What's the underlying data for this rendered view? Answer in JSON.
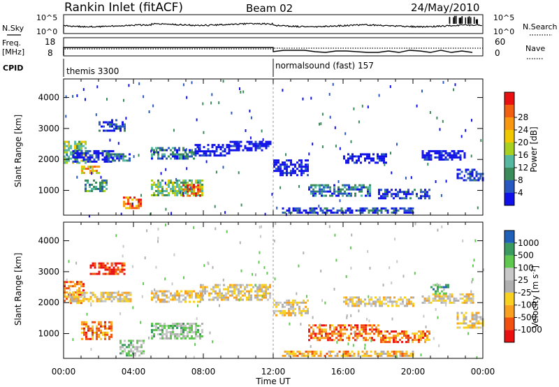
{
  "header": {
    "title": "Rankin Inlet (fitACF)",
    "beam": "Beam 02",
    "date": "24/May/2010"
  },
  "left_labels": {
    "nsky": "N.Sky",
    "freq": "Freq.",
    "mhz": "[MHz]",
    "cpid": "CPID"
  },
  "right_labels": {
    "nsearch": "N.Search",
    "nave": "Nave"
  },
  "ticks": {
    "sky_top": "10^5",
    "sky_bot": "10^0",
    "search_top": "10^5",
    "search_bot": "10^0",
    "freq_top": "18",
    "freq_bot": "8",
    "nave_top": "60",
    "nave_bot": "0"
  },
  "cpid": {
    "first": "themis 3300",
    "second": "normalsound (fast) 157"
  },
  "colors": {
    "power": [
      "#1010e8",
      "#2858c0",
      "#3a8a5a",
      "#56b8a0",
      "#a8d020",
      "#f0c800",
      "#f89810",
      "#f06010",
      "#e81010"
    ],
    "velocity": [
      "#e81010",
      "#f05010",
      "#f8a020",
      "#f8d020",
      "#b0b0b0",
      "#c8c8c8",
      "#60c850",
      "#3a9a60",
      "#2060b8",
      "#1010e8"
    ],
    "ground_scatter": "#bebebe"
  },
  "chart_data": [
    {
      "type": "heatmap",
      "name": "power",
      "ylabel": "Slant Range [km]",
      "yticks": [
        "1000",
        "2000",
        "3000",
        "4000"
      ],
      "ylim": [
        200,
        4600
      ],
      "xlim": [
        0,
        24
      ],
      "colorbar_label": "Power [dB]",
      "colorbar_ticks": [
        "4",
        "8",
        "12",
        "16",
        "20",
        "24",
        "28"
      ],
      "regions": [
        {
          "x": [
            0.0,
            1.3
          ],
          "y": [
            1900,
            2600
          ],
          "level": 4
        },
        {
          "x": [
            0.5,
            2.8
          ],
          "y": [
            1950,
            2300
          ],
          "level": 1
        },
        {
          "x": [
            1.0,
            2.0
          ],
          "y": [
            1550,
            1800
          ],
          "level": 6
        },
        {
          "x": [
            1.2,
            2.5
          ],
          "y": [
            1000,
            1350
          ],
          "level": 3
        },
        {
          "x": [
            2.0,
            3.5
          ],
          "y": [
            2900,
            3300
          ],
          "level": 1
        },
        {
          "x": [
            2.4,
            3.8
          ],
          "y": [
            1950,
            2200
          ],
          "level": 2
        },
        {
          "x": [
            3.4,
            4.4
          ],
          "y": [
            450,
            800
          ],
          "level": 7
        },
        {
          "x": [
            5.0,
            7.5
          ],
          "y": [
            2000,
            2400
          ],
          "level": 2
        },
        {
          "x": [
            5.0,
            8.0
          ],
          "y": [
            850,
            1350
          ],
          "level": 4
        },
        {
          "x": [
            6.8,
            7.8
          ],
          "y": [
            850,
            1200
          ],
          "level": 8
        },
        {
          "x": [
            7.5,
            9.5
          ],
          "y": [
            2100,
            2500
          ],
          "level": 0
        },
        {
          "x": [
            9.5,
            11.8
          ],
          "y": [
            2300,
            2600
          ],
          "level": 0
        },
        {
          "x": [
            12.0,
            14.0
          ],
          "y": [
            1500,
            2000
          ],
          "level": 0
        },
        {
          "x": [
            14.0,
            17.5
          ],
          "y": [
            850,
            1200
          ],
          "level": 2
        },
        {
          "x": [
            16.0,
            18.5
          ],
          "y": [
            1900,
            2200
          ],
          "level": 0
        },
        {
          "x": [
            18.0,
            21.0
          ],
          "y": [
            750,
            1050
          ],
          "level": 1
        },
        {
          "x": [
            20.5,
            23.0
          ],
          "y": [
            2000,
            2300
          ],
          "level": 0
        },
        {
          "x": [
            22.5,
            24.0
          ],
          "y": [
            1300,
            1700
          ],
          "level": 1
        },
        {
          "x": [
            12.5,
            20.0
          ],
          "y": [
            250,
            450
          ],
          "level": 1
        }
      ]
    },
    {
      "type": "heatmap",
      "name": "velocity",
      "xlabel": "Time UT",
      "ylabel": "Slant Range [km]",
      "yticks": [
        "1000",
        "2000",
        "3000",
        "4000"
      ],
      "xticks": [
        "00:00",
        "04:00",
        "08:00",
        "12:00",
        "16:00",
        "20:00",
        "00:00"
      ],
      "ylim": [
        200,
        4600
      ],
      "xlim": [
        0,
        24
      ],
      "colorbar_label": "Velocity [m s^-1]",
      "colorbar_label_main": "Velocity [m s",
      "colorbar_label_exp": "-1",
      "colorbar_label_end": "]",
      "colorbar_ticks": [
        "-1000",
        "-500",
        "-100",
        "-25",
        "25",
        "100",
        "500",
        "1000"
      ],
      "regions": [
        {
          "x": [
            0.0,
            1.2
          ],
          "y": [
            2000,
            2700
          ],
          "level": 2
        },
        {
          "x": [
            0.3,
            3.8
          ],
          "y": [
            2050,
            2350
          ],
          "level": 4
        },
        {
          "x": [
            1.5,
            3.5
          ],
          "y": [
            2950,
            3300
          ],
          "level": 1
        },
        {
          "x": [
            1.0,
            2.8
          ],
          "y": [
            800,
            1400
          ],
          "level": 2
        },
        {
          "x": [
            3.2,
            4.6
          ],
          "y": [
            300,
            800
          ],
          "level": 6
        },
        {
          "x": [
            5.0,
            8.0
          ],
          "y": [
            2000,
            2400
          ],
          "level": 4
        },
        {
          "x": [
            5.0,
            8.0
          ],
          "y": [
            850,
            1350
          ],
          "level": 6
        },
        {
          "x": [
            7.8,
            11.8
          ],
          "y": [
            2100,
            2600
          ],
          "level": 4
        },
        {
          "x": [
            12.0,
            14.0
          ],
          "y": [
            1600,
            2100
          ],
          "level": 4
        },
        {
          "x": [
            14.0,
            18.0
          ],
          "y": [
            800,
            1300
          ],
          "level": 2
        },
        {
          "x": [
            16.0,
            20.0
          ],
          "y": [
            1900,
            2200
          ],
          "level": 4
        },
        {
          "x": [
            18.0,
            21.0
          ],
          "y": [
            750,
            1100
          ],
          "level": 2
        },
        {
          "x": [
            20.5,
            23.5
          ],
          "y": [
            2000,
            2300
          ],
          "level": 4
        },
        {
          "x": [
            21.0,
            22.0
          ],
          "y": [
            2300,
            2600
          ],
          "level": 7
        },
        {
          "x": [
            22.5,
            24.0
          ],
          "y": [
            1200,
            1700
          ],
          "level": 4
        },
        {
          "x": [
            12.5,
            20.0
          ],
          "y": [
            250,
            450
          ],
          "level": 3
        }
      ]
    }
  ]
}
